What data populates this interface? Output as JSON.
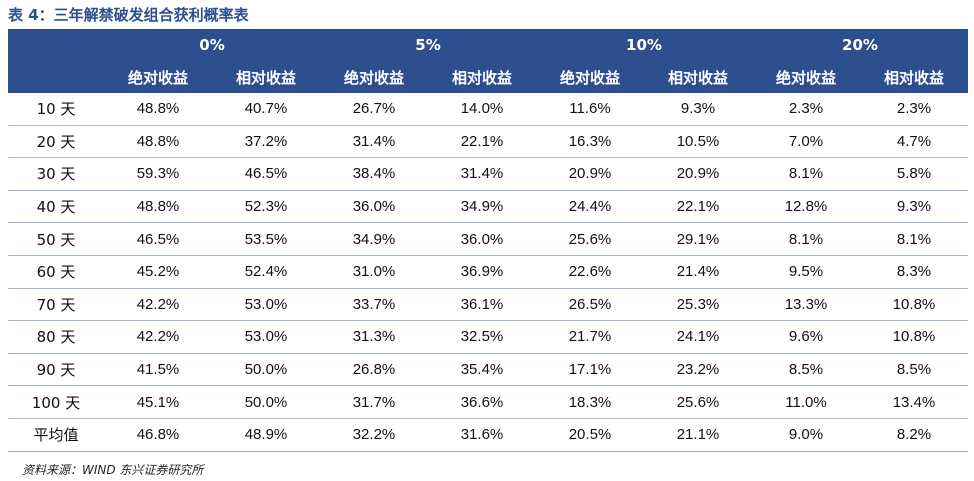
{
  "title": "表 4：三年解禁破发组合获利概率表",
  "table": {
    "groups": [
      {
        "label": "0%",
        "columns": [
          "绝对收益",
          "相对收益"
        ]
      },
      {
        "label": "5%",
        "columns": [
          "绝对收益",
          "相对收益"
        ]
      },
      {
        "label": "10%",
        "columns": [
          "绝对收益",
          "相对收益"
        ]
      },
      {
        "label": "20%",
        "columns": [
          "绝对收益",
          "相对收益"
        ]
      }
    ],
    "rows": [
      {
        "label": "10 天",
        "values": [
          "48.8%",
          "40.7%",
          "26.7%",
          "14.0%",
          "11.6%",
          "9.3%",
          "2.3%",
          "2.3%"
        ]
      },
      {
        "label": "20 天",
        "values": [
          "48.8%",
          "37.2%",
          "31.4%",
          "22.1%",
          "16.3%",
          "10.5%",
          "7.0%",
          "4.7%"
        ]
      },
      {
        "label": "30 天",
        "values": [
          "59.3%",
          "46.5%",
          "38.4%",
          "31.4%",
          "20.9%",
          "20.9%",
          "8.1%",
          "5.8%"
        ]
      },
      {
        "label": "40 天",
        "values": [
          "48.8%",
          "52.3%",
          "36.0%",
          "34.9%",
          "24.4%",
          "22.1%",
          "12.8%",
          "9.3%"
        ]
      },
      {
        "label": "50 天",
        "values": [
          "46.5%",
          "53.5%",
          "34.9%",
          "36.0%",
          "25.6%",
          "29.1%",
          "8.1%",
          "8.1%"
        ]
      },
      {
        "label": "60 天",
        "values": [
          "45.2%",
          "52.4%",
          "31.0%",
          "36.9%",
          "22.6%",
          "21.4%",
          "9.5%",
          "8.3%"
        ]
      },
      {
        "label": "70 天",
        "values": [
          "42.2%",
          "53.0%",
          "33.7%",
          "36.1%",
          "26.5%",
          "25.3%",
          "13.3%",
          "10.8%"
        ]
      },
      {
        "label": "80 天",
        "values": [
          "42.2%",
          "53.0%",
          "31.3%",
          "32.5%",
          "21.7%",
          "24.1%",
          "9.6%",
          "10.8%"
        ]
      },
      {
        "label": "90 天",
        "values": [
          "41.5%",
          "50.0%",
          "26.8%",
          "35.4%",
          "17.1%",
          "23.2%",
          "8.5%",
          "8.5%"
        ]
      },
      {
        "label": "100 天",
        "values": [
          "45.1%",
          "50.0%",
          "31.7%",
          "36.6%",
          "18.3%",
          "25.6%",
          "11.0%",
          "13.4%"
        ]
      },
      {
        "label": "平均值",
        "values": [
          "46.8%",
          "48.9%",
          "32.2%",
          "31.6%",
          "20.5%",
          "21.1%",
          "9.0%",
          "8.2%"
        ]
      }
    ]
  },
  "source": "资料来源：WIND 东兴证券研究所"
}
